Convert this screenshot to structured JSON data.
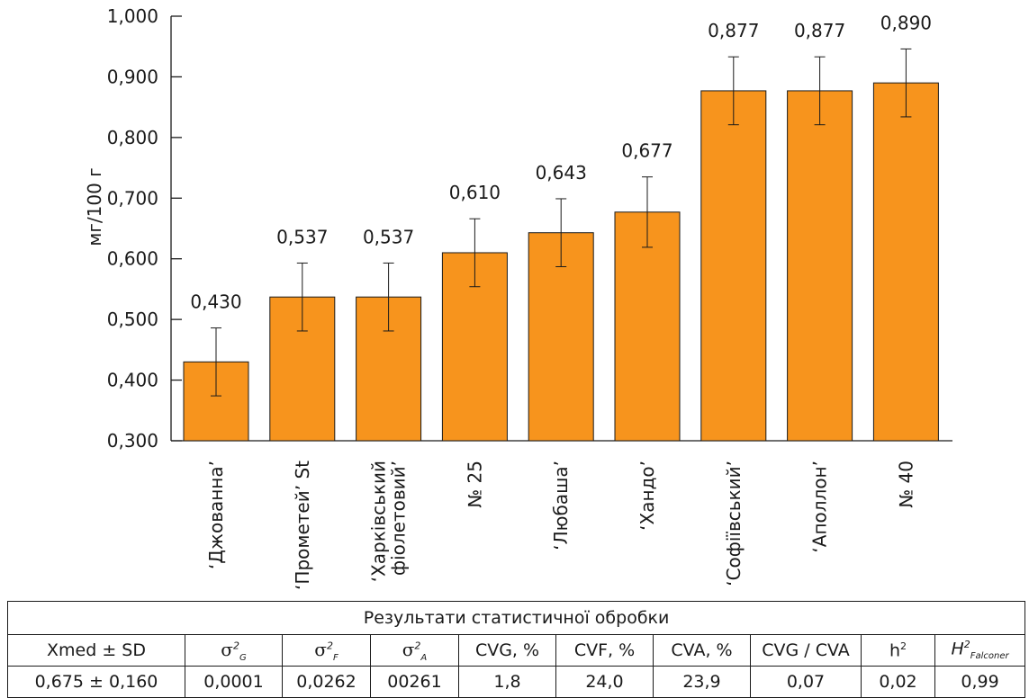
{
  "chart_data": {
    "type": "bar",
    "ylabel": "мг/100 г",
    "ylim": [
      0.3,
      1.0
    ],
    "yticks": [
      "0,300",
      "0,400",
      "0,500",
      "0,600",
      "0,700",
      "0,800",
      "0,900",
      "1,000"
    ],
    "ytick_values": [
      0.3,
      0.4,
      0.5,
      0.6,
      0.7,
      0.8,
      0.9,
      1.0
    ],
    "categories": [
      "ʻДжованнаʼ",
      "ʻПрометейʼ St",
      "ʻХарківський фіолетовийʼ",
      "№ 25",
      "ʻЛюбашаʼ",
      "ʻХандоʼ",
      "ʻСофіївськийʼ",
      "ʻАполлонʼ",
      "№ 40"
    ],
    "category_lines": [
      [
        "ʻДжованнаʼ"
      ],
      [
        "ʻПрометейʼ St"
      ],
      [
        "ʻХарківський",
        "фіолетовийʼ"
      ],
      [
        "№ 25"
      ],
      [
        "ʻЛюбашаʼ"
      ],
      [
        "ʻХандоʼ"
      ],
      [
        "ʻСофіївськийʼ"
      ],
      [
        "ʻАполлонʼ"
      ],
      [
        "№ 40"
      ]
    ],
    "values": [
      0.43,
      0.537,
      0.537,
      0.61,
      0.643,
      0.677,
      0.877,
      0.877,
      0.89
    ],
    "value_labels": [
      "0,430",
      "0,537",
      "0,537",
      "0,610",
      "0,643",
      "0,677",
      "0,877",
      "0,877",
      "0,890"
    ],
    "error": [
      0.056,
      0.056,
      0.056,
      0.056,
      0.056,
      0.058,
      0.056,
      0.056,
      0.056
    ],
    "bar_color": "#F7941D",
    "grid": false
  },
  "stats_table": {
    "caption": "Результати статистичної обробки",
    "headers": {
      "xmed": "Xmed ± SD",
      "sigma": "σ",
      "sup2": "2",
      "sub_g": "G",
      "sub_f": "F",
      "sub_a": "A",
      "cvg": "CVG, %",
      "cvf": "CVF, %",
      "cva": "CVA, %",
      "ratio": "CVG / CVA",
      "h": "h",
      "H": "H",
      "falconer": "Falconer"
    },
    "row": [
      "0,675 ± 0,160",
      "0,0001",
      "0,0262",
      "00261",
      "1,8",
      "24,0",
      "23,9",
      "0,07",
      "0,02",
      "0,99"
    ]
  }
}
